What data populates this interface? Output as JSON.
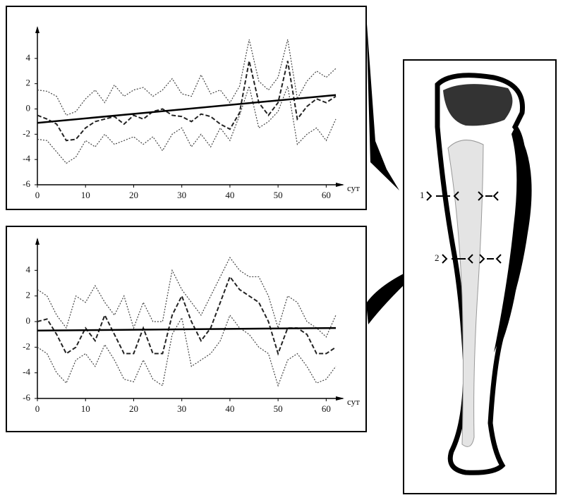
{
  "chart_data": [
    {
      "type": "line",
      "xlabel": "сут",
      "x": [
        0,
        2,
        4,
        6,
        8,
        10,
        12,
        14,
        16,
        18,
        20,
        22,
        24,
        26,
        28,
        30,
        32,
        34,
        36,
        38,
        40,
        42,
        44,
        46,
        48,
        50,
        52,
        54,
        56,
        58,
        60,
        62
      ],
      "xlim": [
        0,
        62
      ],
      "xticks": [
        0,
        10,
        20,
        30,
        40,
        50,
        60
      ],
      "ylim": [
        -6,
        6
      ],
      "yticks": [
        -6,
        -4,
        -2,
        0,
        2,
        4
      ],
      "series": [
        {
          "color": "#444",
          "dash": "2,2",
          "values": [
            1.5,
            1.4,
            1,
            -0.5,
            -0.2,
            0.8,
            1.5,
            0.5,
            1.9,
            1,
            1.5,
            1.7,
            1,
            1.5,
            2.4,
            1.2,
            1,
            2.7,
            1.2,
            1.5,
            0.5,
            1.8,
            5.5,
            2.2,
            1.5,
            2.5,
            5.5,
            0.8,
            2.2,
            3,
            2.5,
            3.2
          ]
        },
        {
          "color": "#222",
          "dash": "6,3",
          "values": [
            -0.5,
            -0.8,
            -1.2,
            -2.5,
            -2.4,
            -1.5,
            -1,
            -0.8,
            -0.6,
            -1.2,
            -0.5,
            -0.8,
            -0.2,
            0,
            -0.5,
            -0.6,
            -1,
            -0.4,
            -0.6,
            -1.2,
            -1.6,
            -0.3,
            3.8,
            0.5,
            -0.5,
            0.5,
            3.8,
            -0.8,
            0.2,
            0.8,
            0.5,
            1
          ]
        },
        {
          "color": "#444",
          "dash": "2,2",
          "values": [
            -2.4,
            -2.5,
            -3.4,
            -4.3,
            -3.8,
            -2.5,
            -3,
            -2,
            -2.8,
            -2.5,
            -2.2,
            -2.8,
            -2.2,
            -3.3,
            -2,
            -1.5,
            -3,
            -2,
            -3,
            -1.5,
            -2.5,
            -0.5,
            1.8,
            -1.5,
            -1,
            -0.2,
            1.8,
            -2.8,
            -2,
            -1.5,
            -2.5,
            -0.8
          ]
        },
        {
          "color": "#000",
          "dash": "none",
          "x": [
            0,
            62
          ],
          "values": [
            -1.1,
            1.1
          ]
        }
      ]
    },
    {
      "type": "line",
      "xlabel": "сут",
      "x": [
        0,
        2,
        4,
        6,
        8,
        10,
        12,
        14,
        16,
        18,
        20,
        22,
        24,
        26,
        28,
        30,
        32,
        34,
        36,
        38,
        40,
        42,
        44,
        46,
        48,
        50,
        52,
        54,
        56,
        58,
        60,
        62
      ],
      "xlim": [
        0,
        62
      ],
      "xticks": [
        0,
        10,
        20,
        30,
        40,
        50,
        60
      ],
      "ylim": [
        -6,
        6
      ],
      "yticks": [
        -6,
        -4,
        -2,
        0,
        2,
        4
      ],
      "series": [
        {
          "color": "#444",
          "dash": "2,2",
          "values": [
            2.5,
            2,
            0.5,
            -0.5,
            2,
            1.5,
            2.8,
            1.5,
            0.5,
            2,
            -0.5,
            1.5,
            0,
            0,
            4,
            2.5,
            1.5,
            0.5,
            2,
            3.5,
            5,
            4,
            3.5,
            3.5,
            2,
            -0.5,
            2,
            1.5,
            0,
            -0.5,
            -1.2,
            0.5
          ]
        },
        {
          "color": "#222",
          "dash": "6,3",
          "values": [
            0,
            0.2,
            -1,
            -2.5,
            -2,
            -0.5,
            -1.5,
            0.5,
            -1,
            -2.5,
            -2.5,
            -0.5,
            -2.5,
            -2.5,
            0.5,
            2,
            0,
            -1.5,
            -0.5,
            1.5,
            3.5,
            2.5,
            2,
            1.5,
            0,
            -2.5,
            -0.5,
            -0.5,
            -1,
            -2.5,
            -2.5,
            -2
          ]
        },
        {
          "color": "#444",
          "dash": "2,2",
          "values": [
            -2,
            -2.5,
            -4,
            -4.8,
            -3,
            -2.5,
            -3.5,
            -1.8,
            -3,
            -4.5,
            -4.7,
            -3,
            -4.5,
            -5,
            -1,
            0.3,
            -3.5,
            -3,
            -2.5,
            -1.5,
            0.5,
            -0.5,
            -1,
            -2,
            -2.5,
            -5,
            -3,
            -2.5,
            -3.5,
            -4.8,
            -4.5,
            -3.5
          ]
        },
        {
          "color": "#000",
          "dash": "none",
          "x": [
            0,
            62
          ],
          "values": [
            -0.7,
            -0.5
          ]
        }
      ]
    }
  ],
  "bone_labels": [
    "1",
    "2"
  ]
}
